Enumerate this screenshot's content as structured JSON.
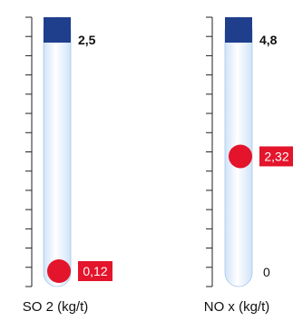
{
  "header": {
    "clipped_text": ""
  },
  "colors": {
    "tube_fill": "#cfe3f8",
    "tube_shine": "#ffffff",
    "tube_edge": "#a8c8ea",
    "cap": "#1f3f8c",
    "marker": "#e3142b",
    "axis": "#222222",
    "label_text": "#111111",
    "value_label_text": "#ffffff"
  },
  "chart_data": {
    "type": "gauge",
    "gauges": [
      {
        "name": "SO2",
        "xlabel": "SO 2 (kg/t)",
        "max_label": "2,5",
        "min_label": "",
        "max": 2.5,
        "min": 0,
        "value": 0.12,
        "value_label": "0,12",
        "ticks": 14
      },
      {
        "name": "NOx",
        "xlabel": "NO x (kg/t)",
        "max_label": "4,8",
        "min_label": "0",
        "max": 4.8,
        "min": 0,
        "value": 2.32,
        "value_label": "2,32",
        "ticks": 14
      }
    ]
  }
}
